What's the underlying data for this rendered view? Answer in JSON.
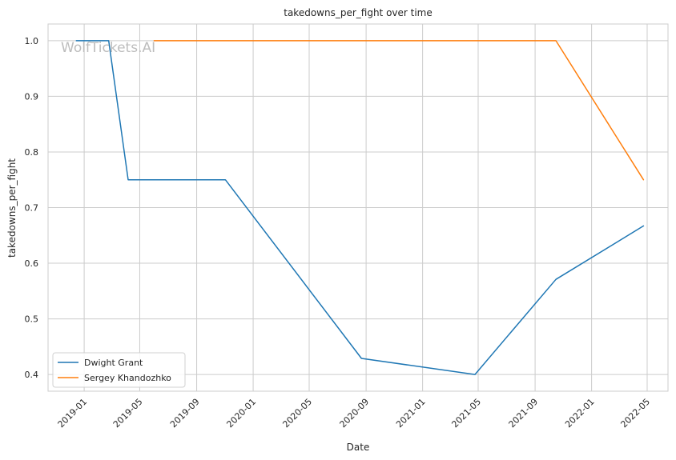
{
  "chart_data": {
    "type": "line",
    "title": "takedowns_per_fight over time",
    "xlabel": "Date",
    "ylabel": "takedowns_per_fight",
    "watermark": "WolfTickets.AI",
    "xlim": [
      "2018-10-15",
      "2022-06-15"
    ],
    "ylim": [
      0.37,
      1.03
    ],
    "x_ticks": [
      "2019-01",
      "2019-05",
      "2019-09",
      "2020-01",
      "2020-05",
      "2020-09",
      "2021-01",
      "2021-05",
      "2021-09",
      "2022-01",
      "2022-05"
    ],
    "y_ticks": [
      "0.4",
      "0.5",
      "0.6",
      "0.7",
      "0.8",
      "0.9",
      "1.0"
    ],
    "grid": true,
    "legend_position": "bottom-left",
    "series": [
      {
        "name": "Dwight Grant",
        "color": "#1f77b4",
        "points": [
          {
            "x": "2018-12-15",
            "y": 1.0
          },
          {
            "x": "2019-02-23",
            "y": 1.0
          },
          {
            "x": "2019-04-06",
            "y": 0.75
          },
          {
            "x": "2019-11-02",
            "y": 0.75
          },
          {
            "x": "2020-08-22",
            "y": 0.429
          },
          {
            "x": "2021-04-24",
            "y": 0.4
          },
          {
            "x": "2021-10-16",
            "y": 0.571
          },
          {
            "x": "2022-04-23",
            "y": 0.667
          }
        ]
      },
      {
        "name": "Sergey Khandozhko",
        "color": "#ff7f0e",
        "points": [
          {
            "x": "2019-06-01",
            "y": 1.0
          },
          {
            "x": "2021-10-16",
            "y": 1.0
          },
          {
            "x": "2022-04-23",
            "y": 0.75
          }
        ]
      }
    ]
  }
}
